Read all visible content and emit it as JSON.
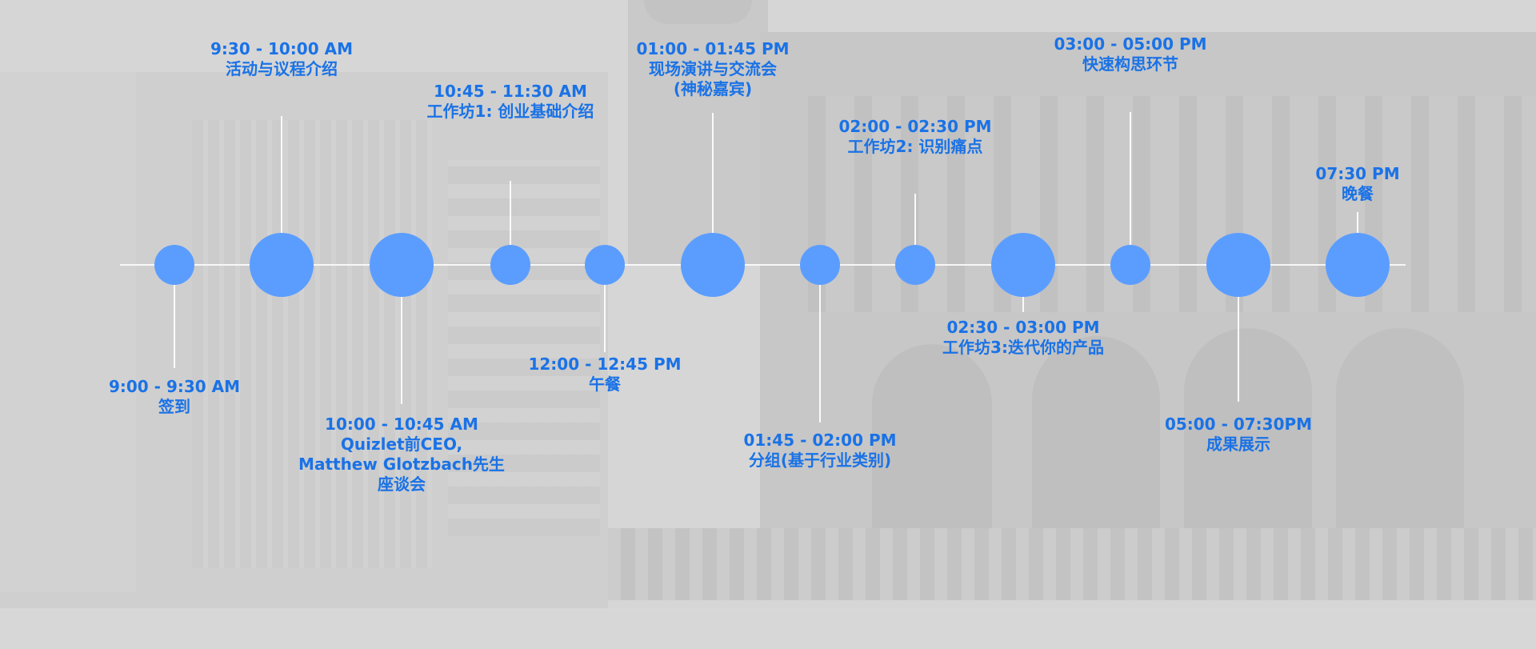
{
  "colors": {
    "accent": "#5b9dff",
    "text": "#1a72e6",
    "line": "#ffffff",
    "background": "#d6d6d6"
  },
  "events": [
    {
      "time": "9:00 - 9:30 AM",
      "lines": [
        "签到"
      ],
      "size": "small",
      "label_side": "below"
    },
    {
      "time": "9:30 - 10:00 AM",
      "lines": [
        "活动与议程介绍"
      ],
      "size": "large",
      "label_side": "above"
    },
    {
      "time": "10:00 - 10:45 AM",
      "lines": [
        "Quizlet前CEO,",
        "Matthew Glotzbach先生",
        "座谈会"
      ],
      "size": "large",
      "label_side": "below"
    },
    {
      "time": "10:45 - 11:30 AM",
      "lines": [
        "工作坊1: 创业基础介绍"
      ],
      "size": "small",
      "label_side": "above"
    },
    {
      "time": "12:00 - 12:45 PM",
      "lines": [
        "午餐"
      ],
      "size": "small",
      "label_side": "below"
    },
    {
      "time": "01:00 - 01:45 PM",
      "lines": [
        "现场演讲与交流会",
        "(神秘嘉宾)"
      ],
      "size": "large",
      "label_side": "above"
    },
    {
      "time": "01:45 - 02:00 PM",
      "lines": [
        "分组(基于行业类别)"
      ],
      "size": "small",
      "label_side": "below"
    },
    {
      "time": "02:00 - 02:30 PM",
      "lines": [
        "工作坊2: 识别痛点"
      ],
      "size": "small",
      "label_side": "above"
    },
    {
      "time": "02:30 - 03:00 PM",
      "lines": [
        "工作坊3:迭代你的产品"
      ],
      "size": "large",
      "label_side": "below"
    },
    {
      "time": "03:00 - 05:00 PM",
      "lines": [
        "快速构思环节"
      ],
      "size": "small",
      "label_side": "above"
    },
    {
      "time": "05:00 - 07:30PM",
      "lines": [
        "成果展示"
      ],
      "size": "large",
      "label_side": "below"
    },
    {
      "time": "07:30 PM",
      "lines": [
        "晚餐"
      ],
      "size": "large",
      "label_side": "above"
    }
  ]
}
